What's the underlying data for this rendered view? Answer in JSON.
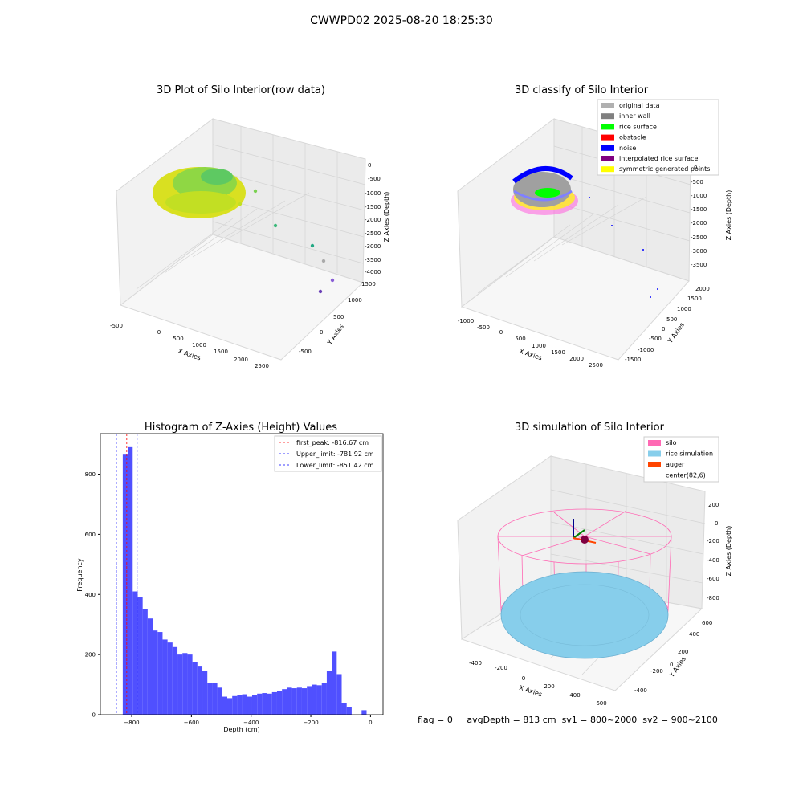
{
  "page": {
    "title": "CWWPD02 2025-08-20 18:25:30"
  },
  "status": {
    "flag": "flag = 0",
    "avg_depth": "avgDepth = 813 cm",
    "sv1": "sv1 = 800~2000",
    "sv2": "sv2 = 900~2100"
  },
  "colors": {
    "histogram_bar": "#5050ff",
    "first_peak_line": "#ff0000",
    "limit_line": "#0000ff",
    "original_data": "#b0b0b0",
    "inner_wall": "#808080",
    "rice_surface": "#00ff00",
    "obstacle": "#ff0000",
    "noise": "#0000ff",
    "interpolated_rice_surface": "#800080",
    "symmetric_generated_points": "#ffff00",
    "silo": "#ff69b4",
    "rice_simulation": "#87ceeb",
    "auger": "#ff4500"
  },
  "chart_data": [
    {
      "id": "raw",
      "type": "scatter",
      "title": "3D Plot of Silo Interior(row data)",
      "xlabel": "X Axies",
      "ylabel": "Y Axies",
      "zlabel": "Z Axies (Depth)",
      "x_ticks": [
        "-500",
        "0",
        "500",
        "1000",
        "1500",
        "2000",
        "2500"
      ],
      "y_ticks": [
        "-500",
        "0",
        "500",
        "1000",
        "1500"
      ],
      "z_ticks": [
        "0",
        "-500",
        "-1000",
        "-1500",
        "-2000",
        "-2500",
        "-3000",
        "-3500",
        "-4000"
      ],
      "xlim": [
        -800,
        2700
      ],
      "ylim": [
        -800,
        1700
      ],
      "zlim": [
        -4200,
        200
      ]
    },
    {
      "id": "classify",
      "type": "scatter",
      "title": "3D classify of Silo Interior",
      "xlabel": "X Axies",
      "ylabel": "Y Axies",
      "zlabel": "Z Axies (Depth)",
      "x_ticks": [
        "-1000",
        "-500",
        "0",
        "500",
        "1000",
        "1500",
        "2000",
        "2500"
      ],
      "y_ticks": [
        "-1500",
        "-1000",
        "-500",
        "0",
        "500",
        "1000",
        "1500",
        "2000"
      ],
      "z_ticks": [
        "0",
        "-500",
        "-1000",
        "-1500",
        "-2000",
        "-2500",
        "-3000",
        "-3500"
      ],
      "xlim": [
        -1100,
        2700
      ],
      "ylim": [
        -1700,
        2200
      ],
      "zlim": [
        -3800,
        100
      ],
      "legend": [
        {
          "label": "original data",
          "color": "#b0b0b0"
        },
        {
          "label": "inner wall",
          "color": "#808080"
        },
        {
          "label": "rice surface",
          "color": "#00ff00"
        },
        {
          "label": "obstacle",
          "color": "#ff0000"
        },
        {
          "label": "noise",
          "color": "#0000ff"
        },
        {
          "label": "interpolated rice surface",
          "color": "#800080"
        },
        {
          "label": "symmetric generated points",
          "color": "#ffff00"
        }
      ],
      "legend_position": "top-right"
    },
    {
      "id": "histogram",
      "type": "bar",
      "title": "Histogram of Z-Axies (Height) Values",
      "xlabel": "Depth (cm)",
      "ylabel": "Frequency",
      "xlim": [
        -905,
        42
      ],
      "ylim": [
        0,
        935
      ],
      "x_ticks": [
        -800,
        -600,
        -400,
        -200,
        0
      ],
      "y_ticks": [
        0,
        200,
        400,
        600,
        800
      ],
      "bin_start": -830,
      "bin_width": 16.67,
      "values": [
        865,
        890,
        410,
        390,
        350,
        320,
        280,
        275,
        250,
        240,
        225,
        200,
        205,
        200,
        175,
        160,
        145,
        105,
        105,
        90,
        60,
        55,
        62,
        65,
        68,
        60,
        65,
        70,
        72,
        70,
        75,
        80,
        85,
        90,
        88,
        90,
        88,
        95,
        100,
        98,
        105,
        145,
        210,
        135,
        40,
        25,
        0,
        0,
        15
      ],
      "lines": [
        {
          "label": "first_peak: -816.67 cm",
          "x": -816.67,
          "color": "#ff0000"
        },
        {
          "label": "Upper_limit: -781.92 cm",
          "x": -781.92,
          "color": "#0000ff"
        },
        {
          "label": "Lower_limit: -851.42 cm",
          "x": -851.42,
          "color": "#0000ff"
        }
      ],
      "legend_position": "top-right"
    },
    {
      "id": "simulation",
      "type": "scatter",
      "title": "3D simulation of Silo Interior",
      "xlabel": "X Axies",
      "ylabel": "Y Axies",
      "zlabel": "Z Axies (Depth)",
      "x_ticks": [
        "-400",
        "-200",
        "0",
        "200",
        "400",
        "600"
      ],
      "y_ticks": [
        "-400",
        "-200",
        "0",
        "200",
        "400",
        "600"
      ],
      "z_ticks": [
        "200",
        "0",
        "-200",
        "-400",
        "-600",
        "-800"
      ],
      "xlim": [
        -500,
        700
      ],
      "ylim": [
        -500,
        700
      ],
      "zlim": [
        -900,
        300
      ],
      "legend": [
        {
          "label": "silo",
          "color": "#ff69b4"
        },
        {
          "label": "rice simulation",
          "color": "#87ceeb"
        },
        {
          "label": "auger",
          "color": "#ff4500"
        },
        {
          "label": "center(82,6)",
          "color": ""
        }
      ],
      "legend_position": "top-right"
    }
  ]
}
